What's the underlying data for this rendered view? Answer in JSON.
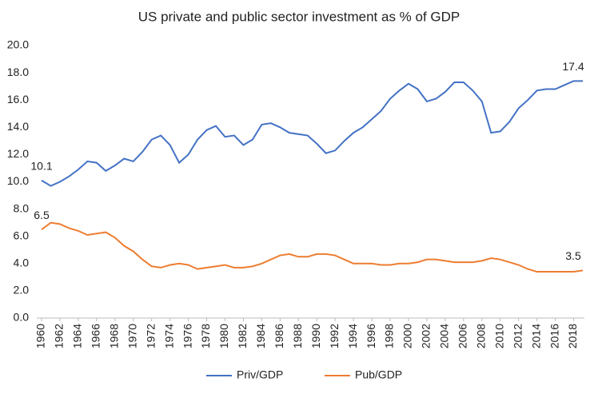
{
  "chart_data": {
    "type": "line",
    "title": "US private and public sector investment as % of GDP",
    "x": [
      1960,
      1961,
      1962,
      1963,
      1964,
      1965,
      1966,
      1967,
      1968,
      1969,
      1970,
      1971,
      1972,
      1973,
      1974,
      1975,
      1976,
      1977,
      1978,
      1979,
      1980,
      1981,
      1982,
      1983,
      1984,
      1985,
      1986,
      1987,
      1988,
      1989,
      1990,
      1991,
      1992,
      1993,
      1994,
      1995,
      1996,
      1997,
      1998,
      1999,
      2000,
      2001,
      2002,
      2003,
      2004,
      2005,
      2006,
      2007,
      2008,
      2009,
      2010,
      2011,
      2012,
      2013,
      2014,
      2015,
      2016,
      2017,
      2018,
      2019
    ],
    "series": [
      {
        "name": "Priv/GDP",
        "color": "#4472c4",
        "values": [
          10.1,
          9.7,
          10.0,
          10.4,
          10.9,
          11.5,
          11.4,
          10.8,
          11.2,
          11.7,
          11.5,
          12.2,
          13.1,
          13.4,
          12.7,
          11.4,
          12.0,
          13.1,
          13.8,
          14.1,
          13.3,
          13.4,
          12.7,
          13.1,
          14.2,
          14.3,
          14.0,
          13.6,
          13.5,
          13.4,
          12.8,
          12.1,
          12.3,
          13.0,
          13.6,
          14.0,
          14.6,
          15.2,
          16.1,
          16.7,
          17.2,
          16.8,
          15.9,
          16.1,
          16.6,
          17.3,
          17.3,
          16.7,
          15.9,
          13.6,
          13.7,
          14.4,
          15.4,
          16.0,
          16.7,
          16.8,
          16.8,
          17.1,
          17.4,
          17.4
        ]
      },
      {
        "name": "Pub/GDP",
        "color": "#ed7d31",
        "values": [
          6.5,
          7.0,
          6.9,
          6.6,
          6.4,
          6.1,
          6.2,
          6.3,
          5.9,
          5.3,
          4.9,
          4.3,
          3.8,
          3.7,
          3.9,
          4.0,
          3.9,
          3.6,
          3.7,
          3.8,
          3.9,
          3.7,
          3.7,
          3.8,
          4.0,
          4.3,
          4.6,
          4.7,
          4.5,
          4.5,
          4.7,
          4.7,
          4.6,
          4.3,
          4.0,
          4.0,
          4.0,
          3.9,
          3.9,
          4.0,
          4.0,
          4.1,
          4.3,
          4.3,
          4.2,
          4.1,
          4.1,
          4.1,
          4.2,
          4.4,
          4.3,
          4.1,
          3.9,
          3.6,
          3.4,
          3.4,
          3.4,
          3.4,
          3.4,
          3.5
        ]
      }
    ],
    "xlim": [
      1960,
      2019
    ],
    "xticks": [
      1960,
      1962,
      1964,
      1966,
      1968,
      1970,
      1972,
      1974,
      1976,
      1978,
      1980,
      1982,
      1984,
      1986,
      1988,
      1990,
      1992,
      1994,
      1996,
      1998,
      2000,
      2002,
      2004,
      2006,
      2008,
      2010,
      2012,
      2014,
      2016,
      2018
    ],
    "ylim": [
      0,
      20
    ],
    "yticks": [
      {
        "value": 0,
        "label": "0.0"
      },
      {
        "value": 2,
        "label": "2.0"
      },
      {
        "value": 4,
        "label": "4.0"
      },
      {
        "value": 6,
        "label": "6.0"
      },
      {
        "value": 8,
        "label": "8.0"
      },
      {
        "value": 10,
        "label": "10.0"
      },
      {
        "value": 12,
        "label": "12.0"
      },
      {
        "value": 14,
        "label": "14.0"
      },
      {
        "value": 16,
        "label": "16.0"
      },
      {
        "value": 18,
        "label": "18.0"
      },
      {
        "value": 20,
        "label": "20.0"
      }
    ],
    "legend": "bottom",
    "grid": false
  }
}
